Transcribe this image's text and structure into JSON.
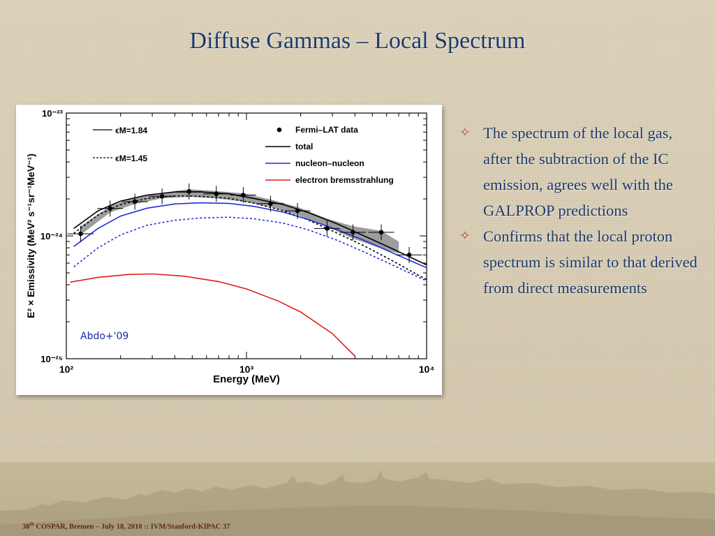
{
  "slide": {
    "title": "Diffuse Gammas – Local Spectrum",
    "bullets": [
      "The spectrum of the local gas, after the subtraction of the IC emission, agrees well with the GALPROP predictions",
      "Confirms that the local proton spectrum is similar to that derived from direct measurements"
    ],
    "bullet_icon": "four-point-star-icon",
    "footer": {
      "num": "38",
      "sup": "th",
      "rest": " COSPAR, Bremen – July 18, 2010 :: IVM/Stanford-KIPAC  37"
    },
    "colors": {
      "title": "#1d3a6b",
      "bullet_mark": "#a24a1e",
      "footer": "#5a2a18"
    }
  },
  "chart_data": {
    "type": "line",
    "xlabel": "Energy (MeV)",
    "ylabel": "E² × Emissivity (MeV² s⁻¹sr⁻¹MeV⁻¹)",
    "xscale": "log",
    "yscale": "log",
    "xlim": [
      100,
      10000
    ],
    "ylim": [
      1e-25,
      1e-23
    ],
    "x_ticks": [
      "10²",
      "10³",
      "10⁴"
    ],
    "y_ticks": [
      "10⁻²³",
      "10⁻²⁴",
      "10⁻²⁵"
    ],
    "annotation": "Abdo+'09",
    "legend_left": [
      {
        "label": "ϵM=1.84",
        "style": "solid"
      },
      {
        "label": "ϵM=1.45",
        "style": "dashed"
      }
    ],
    "legend_right": [
      {
        "label": "Fermi–LAT data",
        "marker": "dot",
        "color": "#000000"
      },
      {
        "label": "total",
        "color": "#000000"
      },
      {
        "label": "nucleon–nucleon",
        "color": "#1f2fd6"
      },
      {
        "label": "electron bremsstrahlung",
        "color": "#e21b1b"
      }
    ],
    "data_points": {
      "x": [
        120,
        175,
        240,
        340,
        480,
        680,
        960,
        1360,
        1920,
        2800,
        3900,
        5600,
        8000
      ],
      "y": [
        1.04e-24,
        1.67e-24,
        1.9e-24,
        2.1e-24,
        2.3e-24,
        2.2e-24,
        2.15e-24,
        1.83e-24,
        1.6e-24,
        1.15e-24,
        1.07e-24,
        1.07e-24,
        7e-25
      ]
    },
    "band": {
      "x": [
        120,
        175,
        240,
        340,
        480,
        680,
        960,
        1360,
        1920,
        2800,
        3900,
        5600,
        7000
      ],
      "low": [
        1.02e-24,
        1.55e-24,
        1.82e-24,
        2.02e-24,
        2.08e-24,
        2.02e-24,
        1.9e-24,
        1.72e-24,
        1.48e-24,
        1.18e-24,
        9.5e-25,
        7.9e-25,
        7.2e-25
      ],
      "high": [
        1.2e-24,
        1.75e-24,
        2.06e-24,
        2.24e-24,
        2.4e-24,
        2.32e-24,
        2.22e-24,
        1.98e-24,
        1.72e-24,
        1.38e-24,
        1.2e-24,
        1.1e-24,
        9e-25
      ]
    },
    "series": [
      {
        "name": "total",
        "epsilon": "1.84",
        "style": "solid",
        "color": "#000000",
        "x": [
          110,
          150,
          200,
          280,
          400,
          560,
          800,
          1100,
          1600,
          2200,
          3200,
          4500,
          6300,
          10000
        ],
        "y": [
          1.15e-24,
          1.6e-24,
          1.92e-24,
          2.15e-24,
          2.28e-24,
          2.28e-24,
          2.2e-24,
          2.02e-24,
          1.8e-24,
          1.55e-24,
          1.25e-24,
          1e-24,
          8e-25,
          5.8e-25
        ]
      },
      {
        "name": "total",
        "epsilon": "1.45",
        "style": "dashed",
        "color": "#000000",
        "x": [
          110,
          150,
          200,
          280,
          400,
          560,
          800,
          1100,
          1600,
          2200,
          3200,
          4500,
          6300,
          10000
        ],
        "y": [
          1.05e-24,
          1.48e-24,
          1.8e-24,
          2.02e-24,
          2.12e-24,
          2.1e-24,
          2.02e-24,
          1.85e-24,
          1.6e-24,
          1.35e-24,
          1.05e-24,
          8.3e-25,
          6.4e-25,
          4.4e-25
        ]
      },
      {
        "name": "nucleon–nucleon",
        "epsilon": "1.84",
        "style": "solid",
        "color": "#1f2fd6",
        "x": [
          110,
          150,
          200,
          280,
          400,
          560,
          800,
          1100,
          1600,
          2200,
          3200,
          4500,
          6300,
          10000
        ],
        "y": [
          8.2e-25,
          1.15e-24,
          1.45e-24,
          1.68e-24,
          1.82e-24,
          1.86e-24,
          1.84e-24,
          1.74e-24,
          1.56e-24,
          1.36e-24,
          1.12e-24,
          9.2e-25,
          7.4e-25,
          5.5e-25
        ]
      },
      {
        "name": "nucleon–nucleon",
        "epsilon": "1.45",
        "style": "dashed",
        "color": "#1f2fd6",
        "x": [
          110,
          150,
          200,
          280,
          400,
          560,
          800,
          1100,
          1600,
          2200,
          3200,
          4500,
          6300,
          10000
        ],
        "y": [
          5.6e-25,
          8e-25,
          1.02e-24,
          1.22e-24,
          1.34e-24,
          1.4e-24,
          1.42e-24,
          1.38e-24,
          1.27e-24,
          1.12e-24,
          9.2e-25,
          7.4e-25,
          5.9e-25,
          4.3e-25
        ]
      },
      {
        "name": "electron bremsstrahlung",
        "style": "solid",
        "color": "#e21b1b",
        "x": [
          105,
          150,
          220,
          300,
          450,
          700,
          1000,
          1500,
          2000,
          3000,
          4000
        ],
        "y": [
          4.2e-25,
          4.6e-25,
          4.85e-25,
          4.9e-25,
          4.7e-25,
          4.25e-25,
          3.7e-25,
          2.95e-25,
          2.4e-25,
          1.6e-25,
          1.05e-25
        ]
      }
    ]
  }
}
